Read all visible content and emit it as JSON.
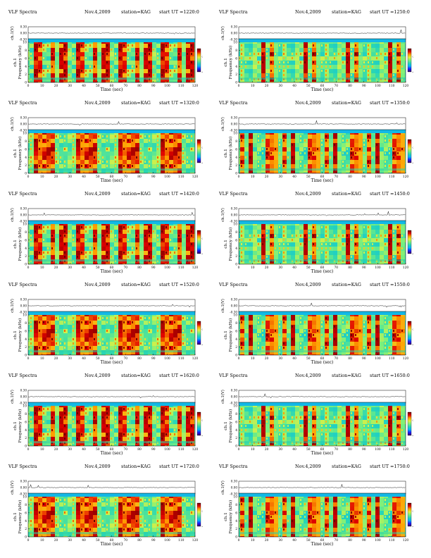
{
  "figure": {
    "tile": {
      "mark_values": [
        0.15,
        0.32,
        0.5,
        0.66,
        0.83
      ]
    },
    "cbar_stops": [
      "#3b0063",
      "#1a1aff",
      "#00b4ff",
      "#29d6b5",
      "#7cf07c",
      "#e8f03c",
      "#ff9d00",
      "#e00000",
      "#6b0000"
    ],
    "spec_bg": "#2ed2a8",
    "noise_bg": "#13b8e6"
  },
  "panels": [
    {
      "title_left": "VLF Spectra",
      "date": "Nov.4,2009",
      "station": "station=KAG",
      "start": "start  UT =1220:0"
    },
    {
      "title_left": "VLF Spectra",
      "date": "Nov.4,2009",
      "station": "station=KAG",
      "start": "start  UT =1250:0"
    },
    {
      "title_left": "VLF Spectra",
      "date": "Nov.4,2009",
      "station": "station=KAG",
      "start": "start  UT =1320:0"
    },
    {
      "title_left": "VLF Spectra",
      "date": "Nov.4,2009",
      "station": "station=KAG",
      "start": "start  UT =1350:0"
    },
    {
      "title_left": "VLF Spectra",
      "date": "Nov.4,2009",
      "station": "station=KAG",
      "start": "start  UT =1420:0"
    },
    {
      "title_left": "VLF Spectra",
      "date": "Nov.4,2009",
      "station": "station=KAG",
      "start": "start  UT =1450:0"
    },
    {
      "title_left": "VLF Spectra",
      "date": "Nov.4,2009",
      "station": "station=KAG",
      "start": "start  UT =1520:0"
    },
    {
      "title_left": "VLF Spectra",
      "date": "Nov.4,2009",
      "station": "station=KAG",
      "start": "start  UT =1550:0"
    },
    {
      "title_left": "VLF Spectra",
      "date": "Nov.4,2009",
      "station": "station=KAG",
      "start": "start  UT =1620:0"
    },
    {
      "title_left": "VLF Spectra",
      "date": "Nov.4,2009",
      "station": "station=KAG",
      "start": "start  UT =1650:0"
    },
    {
      "title_left": "VLF Spectra",
      "date": "Nov.4,2009",
      "station": "station=KAG",
      "start": "start  UT =1720:0"
    },
    {
      "title_left": "VLF Spectra",
      "date": "Nov.4,2009",
      "station": "station=KAG",
      "start": "start  UT =1750:0"
    }
  ],
  "chart_data": {
    "type": "heatmap",
    "xlabel": "Time  (sec)",
    "ylabel": "Frequency  (kHz)",
    "ylabel_left": "ch.1",
    "waveform_ylabel": "ch.1(V)",
    "colorbar_label": "log10(PSD)(V^2/Hz)",
    "xlim": [
      0,
      120
    ],
    "ylim": [
      0,
      10
    ],
    "x_ticks": [
      "0",
      "10",
      "20",
      "30",
      "40",
      "50",
      "60",
      "70",
      "80",
      "90",
      "100",
      "110",
      "120"
    ],
    "y_ticks": [
      "0",
      "2",
      "4",
      "6",
      "8",
      "10"
    ],
    "waveform_ticks": [
      "0.30",
      "0.00",
      "-0.30"
    ],
    "waveform_ylim": [
      -0.3,
      0.3
    ],
    "colorbar_ticks": [
      "-4",
      "-2"
    ],
    "grid": false,
    "panel_count": 12
  }
}
